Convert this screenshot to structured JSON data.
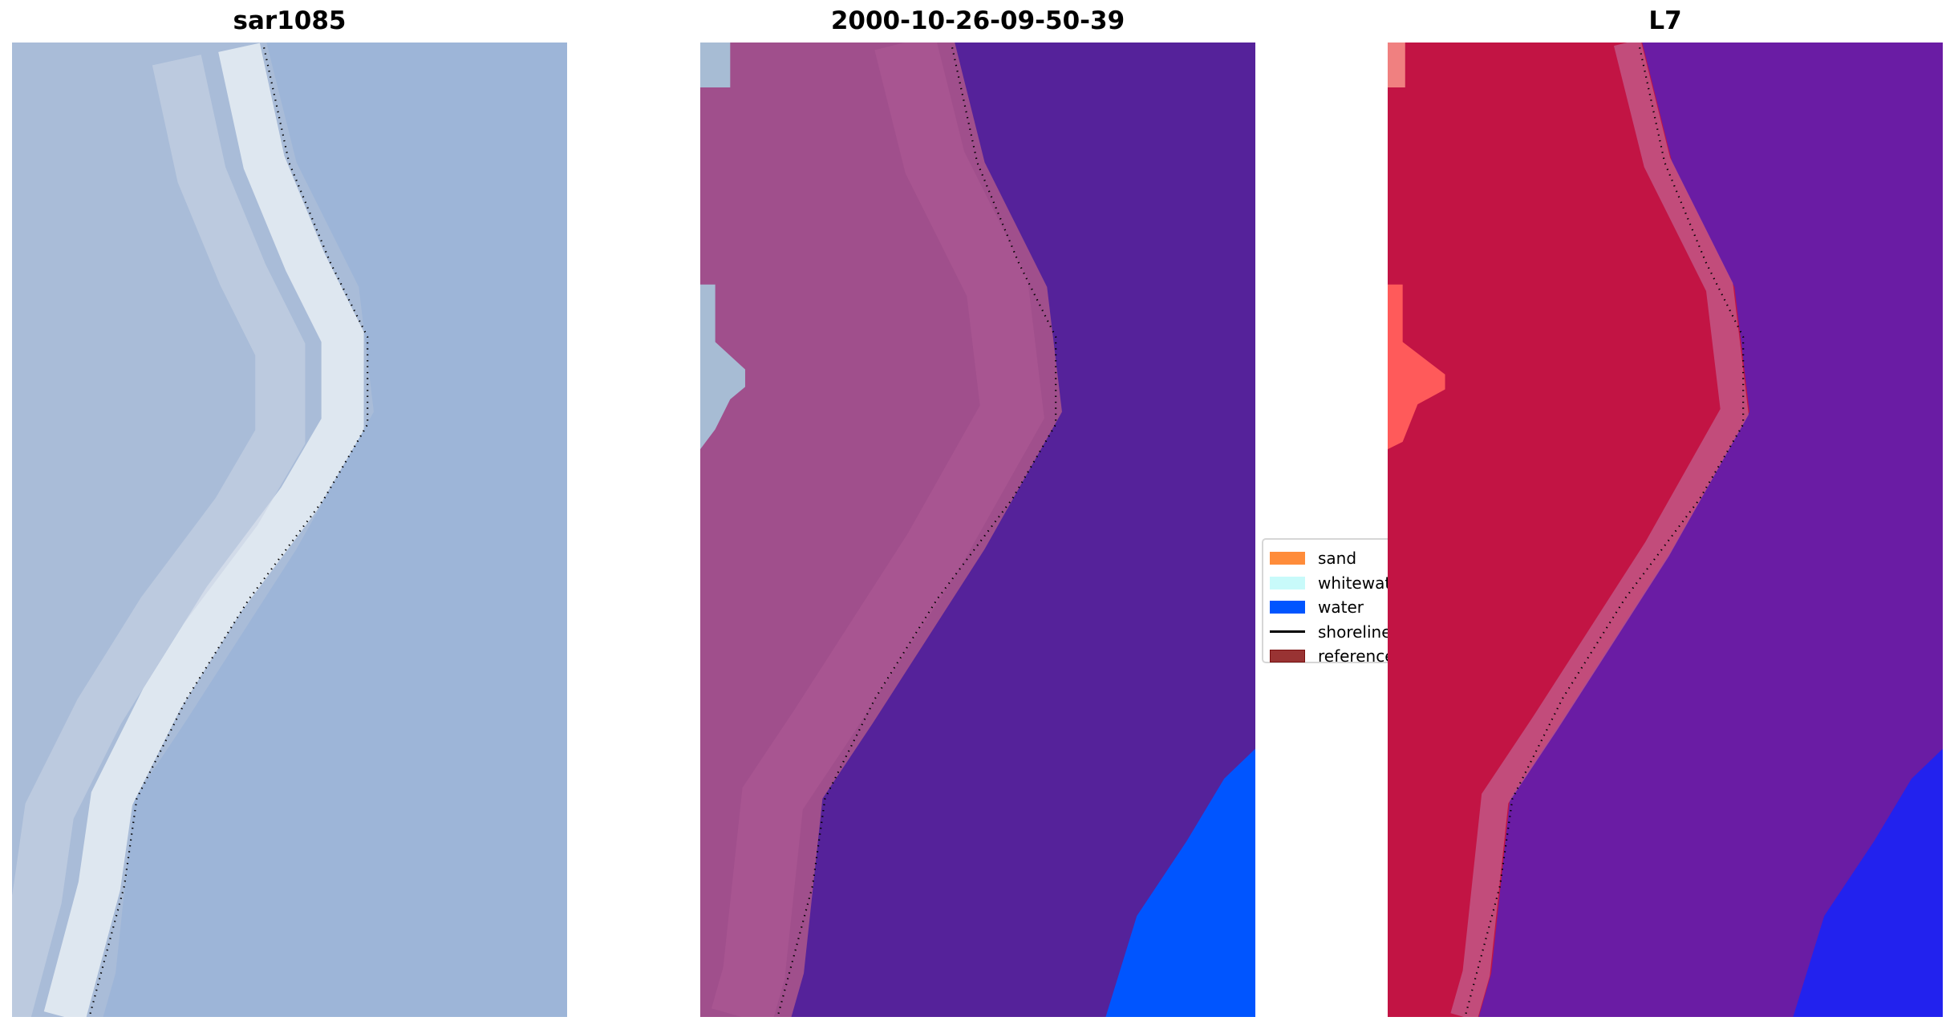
{
  "chart_data": [
    {
      "type": "image",
      "title": "sar1085"
    },
    {
      "type": "image",
      "title": "2000-10-26-09-50-39"
    },
    {
      "type": "image",
      "title": "L7"
    }
  ],
  "legend": {
    "placement": "center-right",
    "items": [
      {
        "label": "sand",
        "color": "#ff8c3a",
        "kind": "patch"
      },
      {
        "label": "whitewater",
        "color": "#c8fafa",
        "kind": "patch"
      },
      {
        "label": "water",
        "color": "#0055ff",
        "kind": "patch"
      },
      {
        "label": "shoreline",
        "color": "#000000",
        "kind": "line"
      },
      {
        "label": "reference",
        "color": "#993333",
        "kind": "patch"
      }
    ]
  },
  "colors": {
    "sar_bg": "#9db5d8",
    "classified_land": "#a04f8c",
    "classified_sea": "#55229a",
    "l7_land": "#c21444",
    "l7_sea": "#6a1ca4",
    "water": "#0055ff"
  }
}
